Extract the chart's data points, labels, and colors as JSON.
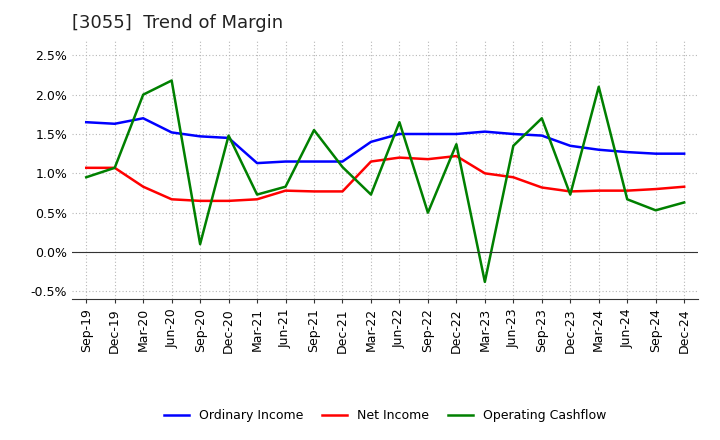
{
  "title": "[3055]  Trend of Margin",
  "ylim": [
    -0.006,
    0.027
  ],
  "yticks": [
    -0.005,
    0.0,
    0.005,
    0.01,
    0.015,
    0.02,
    0.025
  ],
  "ytick_labels": [
    "-0.5%",
    "0.0%",
    "0.5%",
    "1.0%",
    "1.5%",
    "2.0%",
    "2.5%"
  ],
  "x_labels": [
    "Sep-19",
    "Dec-19",
    "Mar-20",
    "Jun-20",
    "Sep-20",
    "Dec-20",
    "Mar-21",
    "Jun-21",
    "Sep-21",
    "Dec-21",
    "Mar-22",
    "Jun-22",
    "Sep-22",
    "Dec-22",
    "Mar-23",
    "Jun-23",
    "Sep-23",
    "Dec-23",
    "Mar-24",
    "Jun-24",
    "Sep-24",
    "Dec-24"
  ],
  "ordinary_income": [
    0.0165,
    0.0163,
    0.017,
    0.0152,
    0.0147,
    0.0145,
    0.0113,
    0.0115,
    0.0115,
    0.0115,
    0.014,
    0.015,
    0.015,
    0.015,
    0.0153,
    0.015,
    0.0148,
    0.0135,
    0.013,
    0.0127,
    0.0125,
    0.0125
  ],
  "net_income": [
    0.0107,
    0.0107,
    0.0083,
    0.0067,
    0.0065,
    0.0065,
    0.0067,
    0.0078,
    0.0077,
    0.0077,
    0.0115,
    0.012,
    0.0118,
    0.0122,
    0.01,
    0.0095,
    0.0082,
    0.0077,
    0.0078,
    0.0078,
    0.008,
    0.0083
  ],
  "operating_cashflow": [
    0.0095,
    0.0107,
    0.02,
    0.0218,
    0.001,
    0.0148,
    0.0073,
    0.0083,
    0.0155,
    0.0108,
    0.0073,
    0.0165,
    0.005,
    0.0137,
    -0.0038,
    0.0135,
    0.017,
    0.0073,
    0.021,
    0.0067,
    0.0053,
    0.0063
  ],
  "ordinary_color": "#0000ff",
  "net_income_color": "#ff0000",
  "operating_cashflow_color": "#008000",
  "background_color": "#ffffff",
  "grid_color": "#b0b0b0",
  "title_fontsize": 13,
  "tick_fontsize": 9,
  "legend_labels": [
    "Ordinary Income",
    "Net Income",
    "Operating Cashflow"
  ]
}
